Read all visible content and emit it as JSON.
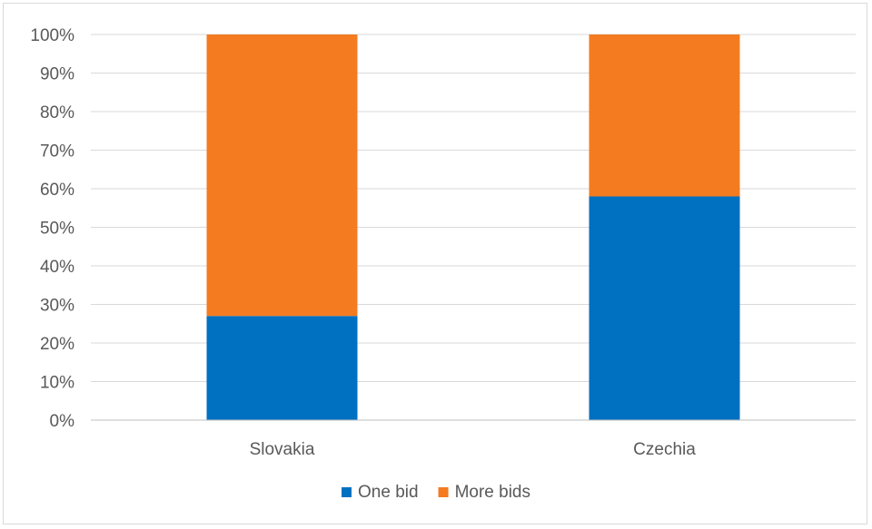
{
  "chart_data": {
    "type": "bar",
    "stacked": true,
    "percent": true,
    "categories": [
      "Slovakia",
      "Czechia"
    ],
    "series": [
      {
        "name": "One bid",
        "values": [
          27,
          58
        ],
        "color": "#0070C0"
      },
      {
        "name": "More bids",
        "values": [
          73,
          42
        ],
        "color": "#F47B20"
      }
    ],
    "ylim": [
      0,
      100
    ],
    "yticks": [
      "0%",
      "10%",
      "20%",
      "30%",
      "40%",
      "50%",
      "60%",
      "70%",
      "80%",
      "90%",
      "100%"
    ],
    "grid": true,
    "legend": "bottom",
    "title": "",
    "xlabel": "",
    "ylabel": ""
  }
}
